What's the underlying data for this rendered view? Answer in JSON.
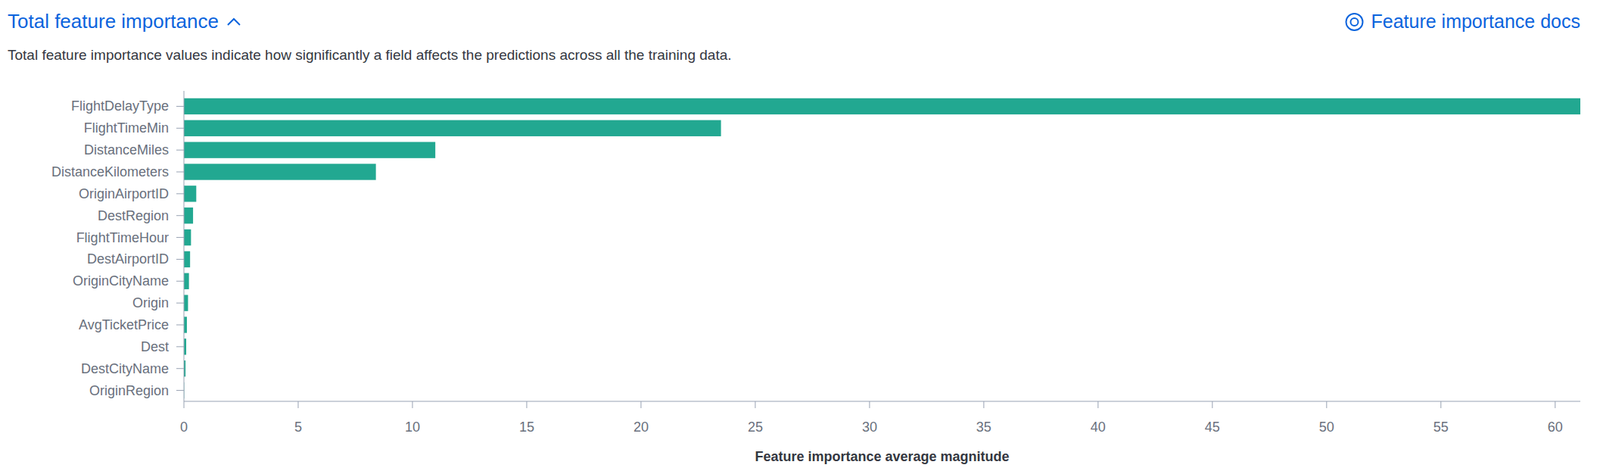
{
  "chart_data": {
    "type": "bar",
    "orientation": "horizontal",
    "title": "Total feature importance",
    "link_text": "Feature importance docs",
    "subtitle": "Total feature importance values indicate how significantly a field affects the predictions across all the training data.",
    "xlabel": "Feature importance average magnitude",
    "categories": [
      "FlightDelayType",
      "FlightTimeMin",
      "DistanceMiles",
      "DistanceKilometers",
      "OriginAirportID",
      "DestRegion",
      "FlightTimeHour",
      "DestAirportID",
      "OriginCityName",
      "Origin",
      "AvgTicketPrice",
      "Dest",
      "DestCityName",
      "OriginRegion"
    ],
    "values": [
      61.1,
      23.5,
      11.0,
      8.4,
      0.54,
      0.4,
      0.31,
      0.27,
      0.22,
      0.18,
      0.13,
      0.1,
      0.07,
      0.01
    ],
    "color": "#22a891",
    "xlim": [
      0,
      61.1
    ],
    "xticks": [
      0,
      5,
      10,
      15,
      20,
      25,
      30,
      35,
      40,
      45,
      50,
      55,
      60
    ],
    "grid": false
  }
}
